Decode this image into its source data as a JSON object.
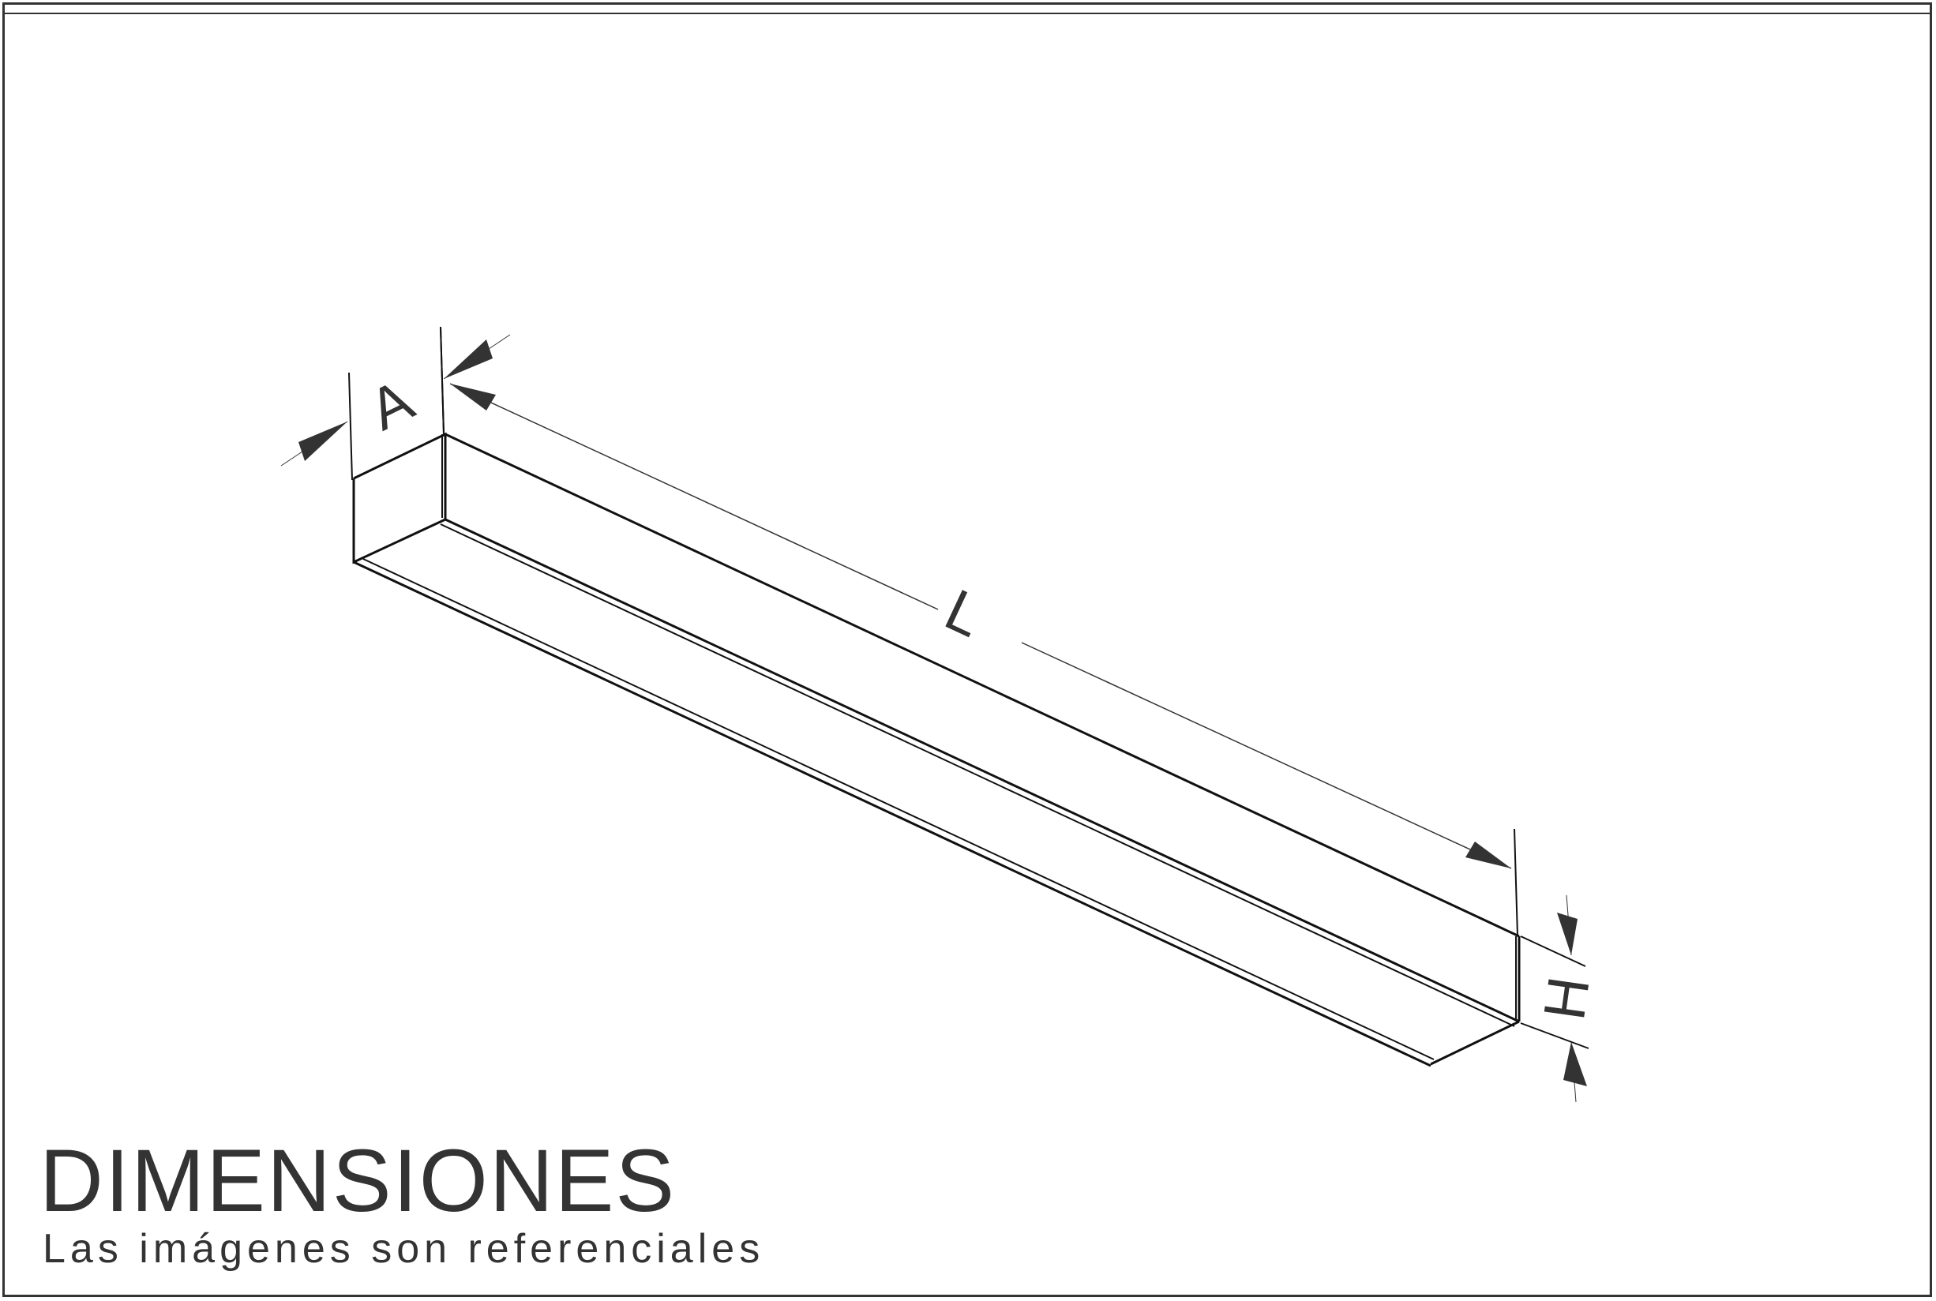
{
  "dimension_labels": {
    "width": "A",
    "length": "L",
    "height": "H"
  },
  "title": "DIMENSIONES",
  "subtitle": "Las imágenes son referenciales",
  "colors": {
    "ink": "#333333",
    "line": "#111111",
    "background": "#ffffff"
  }
}
